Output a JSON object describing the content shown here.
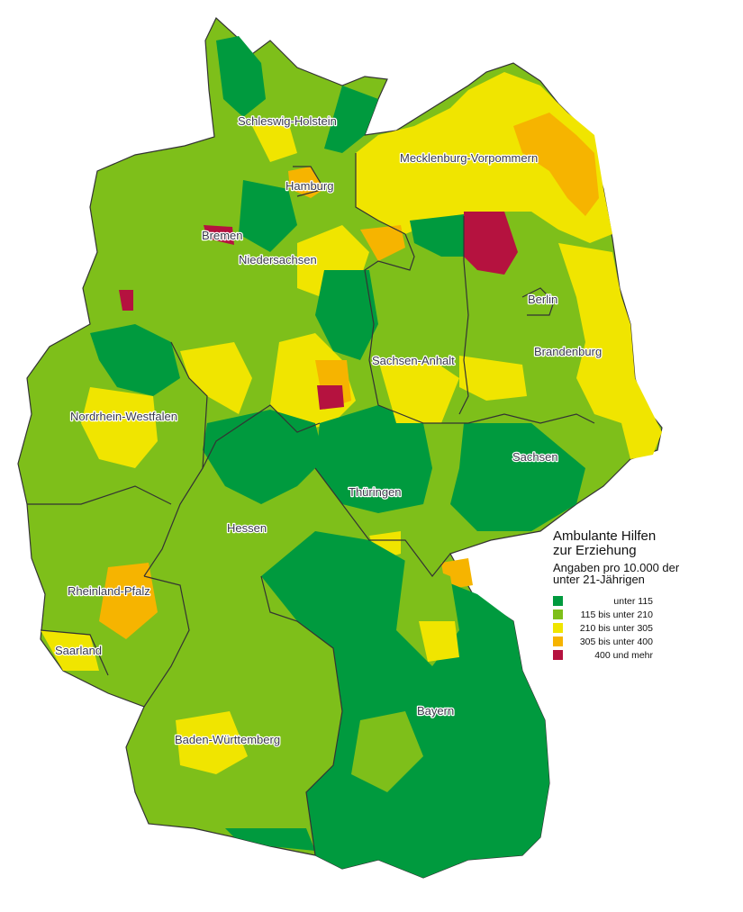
{
  "legend": {
    "title_line1": "Ambulante Hilfen",
    "title_line2": "zur Erziehung",
    "subtitle_line1": "Angaben pro 10.000 der",
    "subtitle_line2": "unter 21-Jährigen",
    "classes": [
      {
        "label": "unter 115",
        "color": "#009a3e"
      },
      {
        "label": "115 bis unter 210",
        "color": "#7ebf1a"
      },
      {
        "label": "210 bis unter 305",
        "color": "#f0e500"
      },
      {
        "label": "305 bis unter 400",
        "color": "#f6b400"
      },
      {
        "label": "400 und mehr",
        "color": "#b5123f"
      }
    ]
  },
  "states": [
    {
      "name": "Schleswig-Holstein"
    },
    {
      "name": "Hamburg"
    },
    {
      "name": "Mecklenburg-Vorpommern"
    },
    {
      "name": "Bremen"
    },
    {
      "name": "Niedersachsen"
    },
    {
      "name": "Berlin"
    },
    {
      "name": "Brandenburg"
    },
    {
      "name": "Sachsen-Anhalt"
    },
    {
      "name": "Nordrhein-Westfalen"
    },
    {
      "name": "Sachsen"
    },
    {
      "name": "Thüringen"
    },
    {
      "name": "Hessen"
    },
    {
      "name": "Rheinland-Pfalz"
    },
    {
      "name": "Saarland"
    },
    {
      "name": "Bayern"
    },
    {
      "name": "Baden-Württemberg"
    }
  ]
}
